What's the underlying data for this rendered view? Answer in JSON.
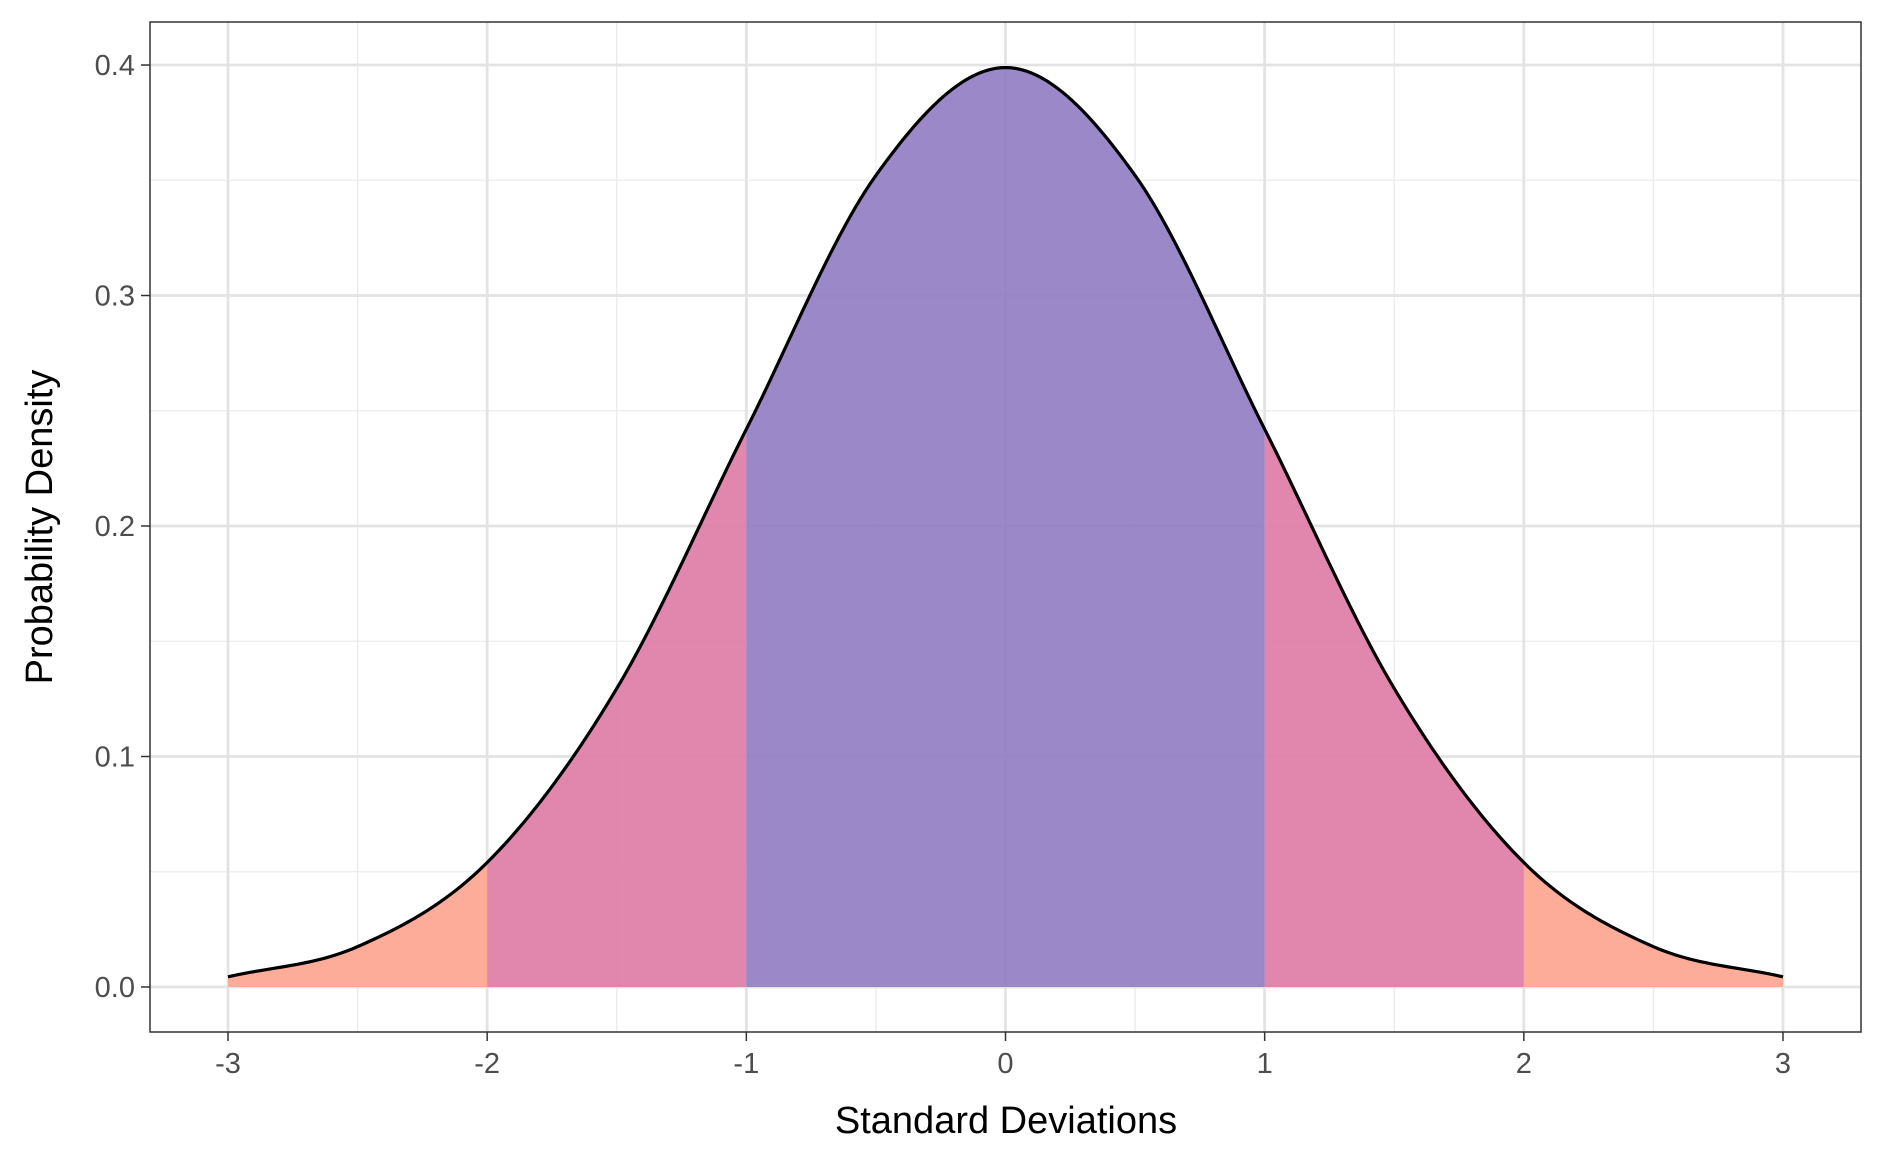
{
  "chart_data": {
    "type": "area",
    "distribution": "standard normal",
    "xlabel": "Standard Deviations",
    "ylabel": "Probability Density",
    "xlim": [
      -3,
      3
    ],
    "ylim": [
      0,
      0.4
    ],
    "x_ticks": [
      -3,
      -2,
      -1,
      0,
      1,
      2,
      3
    ],
    "x_tick_labels": [
      "-3",
      "-2",
      "-1",
      "0",
      "1",
      "2",
      "3"
    ],
    "y_ticks": [
      0.0,
      0.1,
      0.2,
      0.3,
      0.4
    ],
    "y_tick_labels": [
      "0.0",
      "0.1",
      "0.2",
      "0.3",
      "0.4"
    ],
    "grid": true,
    "legend": "none",
    "curve_color": "#000000",
    "bands": [
      {
        "from": -3,
        "to": -2,
        "color": "#fca58f"
      },
      {
        "from": -2,
        "to": -1,
        "color": "#de7da6"
      },
      {
        "from": -1,
        "to": 1,
        "color": "#927ec3"
      },
      {
        "from": 1,
        "to": 2,
        "color": "#de7da6"
      },
      {
        "from": 2,
        "to": 3,
        "color": "#fca58f"
      }
    ],
    "curve_points": [
      {
        "x": -3.0,
        "y": 0.0044
      },
      {
        "x": -2.5,
        "y": 0.0175
      },
      {
        "x": -2.0,
        "y": 0.054
      },
      {
        "x": -1.5,
        "y": 0.1295
      },
      {
        "x": -1.0,
        "y": 0.242
      },
      {
        "x": -0.5,
        "y": 0.3521
      },
      {
        "x": 0.0,
        "y": 0.3989
      },
      {
        "x": 0.5,
        "y": 0.3521
      },
      {
        "x": 1.0,
        "y": 0.242
      },
      {
        "x": 1.5,
        "y": 0.1295
      },
      {
        "x": 2.0,
        "y": 0.054
      },
      {
        "x": 2.5,
        "y": 0.0175
      },
      {
        "x": 3.0,
        "y": 0.0044
      }
    ]
  }
}
